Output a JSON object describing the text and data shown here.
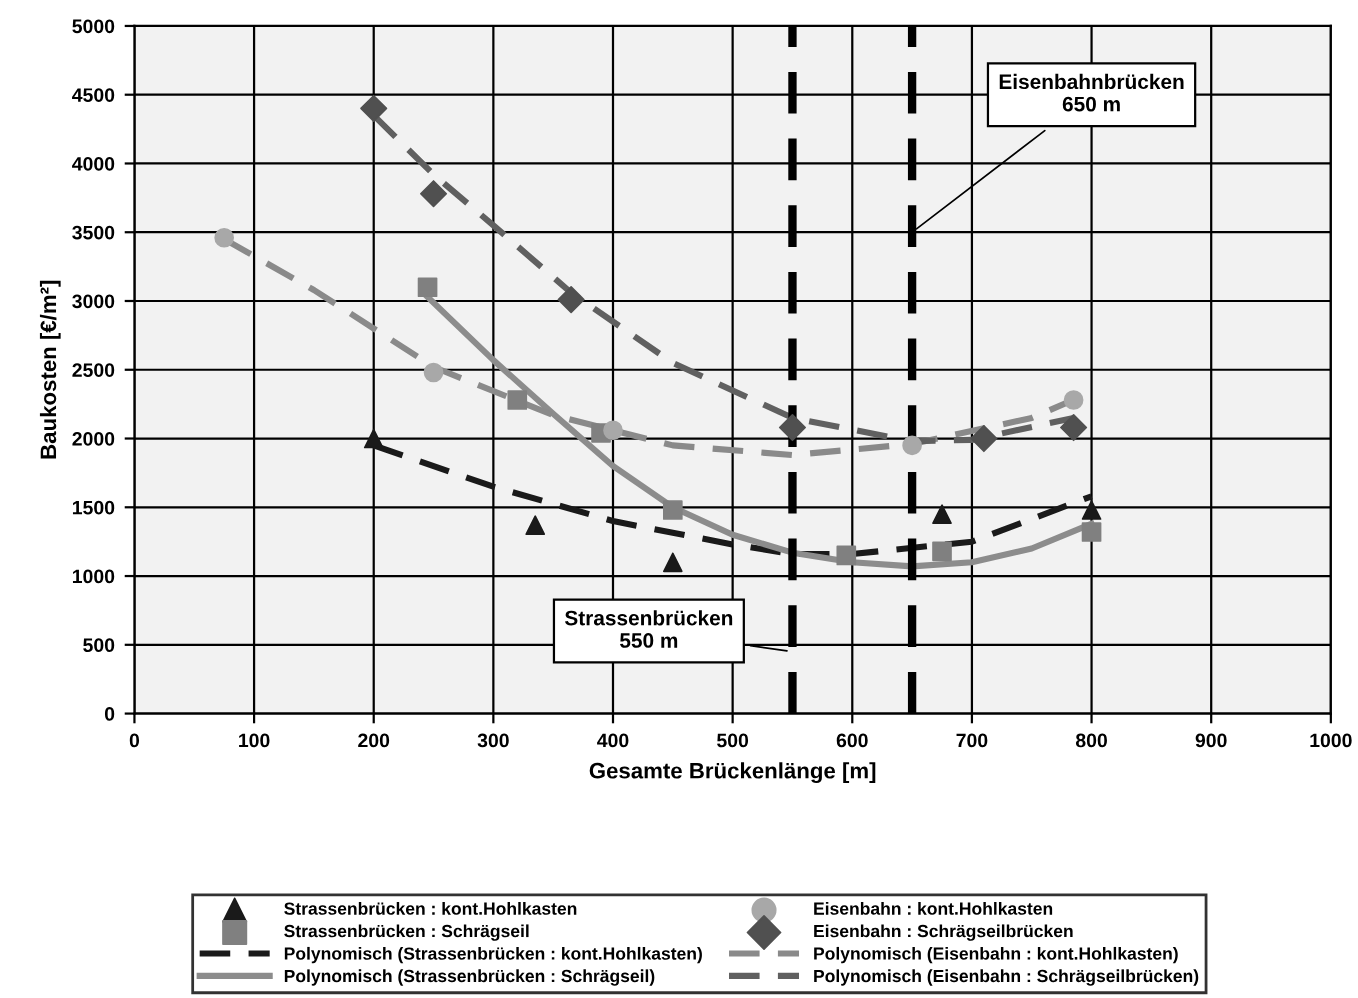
{
  "chart_data": {
    "type": "scatter",
    "xlabel": "Gesamte Brückenlänge [m]",
    "ylabel": "Baukosten [€/m²]",
    "xlim": [
      0,
      1000
    ],
    "ylim": [
      0,
      5000
    ],
    "xticks": [
      0,
      100,
      200,
      300,
      400,
      500,
      600,
      700,
      800,
      900,
      1000
    ],
    "yticks": [
      0,
      500,
      1000,
      1500,
      2000,
      2500,
      3000,
      3500,
      4000,
      4500,
      5000
    ],
    "grid": true,
    "legend": "bottom",
    "series": [
      {
        "name": "Strassenbrücken : kont.Hohlkasten",
        "marker": "triangle",
        "color": "#1a1a1a",
        "x": [
          200,
          335,
          450,
          675,
          800
        ],
        "values": [
          2000,
          1370,
          1100,
          1450,
          1480
        ]
      },
      {
        "name": "Strassenbrücken : Schrägseil",
        "marker": "square",
        "color": "#808080",
        "x": [
          245,
          320,
          390,
          450,
          595,
          675,
          800
        ],
        "values": [
          3100,
          2280,
          2040,
          1480,
          1150,
          1180,
          1320
        ]
      },
      {
        "name": "Polynomisch (Strassenbrücken : kont.Hohlkasten)",
        "type": "line",
        "line_style": "dashed",
        "color": "#1a1a1a",
        "x": [
          200,
          300,
          400,
          500,
          550,
          600,
          700,
          800
        ],
        "values": [
          1950,
          1650,
          1400,
          1230,
          1160,
          1160,
          1250,
          1580
        ]
      },
      {
        "name": "Polynomisch (Strassenbrücken : Schrägseil)",
        "type": "line",
        "line_style": "solid",
        "color": "#8c8c8c",
        "x": [
          245,
          300,
          350,
          400,
          450,
          500,
          550,
          600,
          650,
          700,
          750,
          800
        ],
        "values": [
          3030,
          2570,
          2180,
          1800,
          1500,
          1300,
          1170,
          1100,
          1070,
          1100,
          1200,
          1380
        ]
      },
      {
        "name": "Eisenbahn : kont.Hohlkasten",
        "marker": "circle",
        "color": "#a8a8a8",
        "x": [
          75,
          250,
          400,
          650,
          785
        ],
        "values": [
          3460,
          2480,
          2060,
          1950,
          2280
        ]
      },
      {
        "name": "Eisenbahn : Schrägseilbrücken",
        "marker": "diamond",
        "color": "#505050",
        "x": [
          200,
          250,
          365,
          550,
          710,
          785
        ],
        "values": [
          4400,
          3780,
          3010,
          2080,
          2000,
          2080
        ]
      },
      {
        "name": "Polynomisch (Eisenbahn : kont.Hohlkasten)",
        "type": "line",
        "line_style": "dashed",
        "color": "#8a8a8a",
        "x": [
          75,
          150,
          250,
          350,
          450,
          550,
          650,
          750,
          790
        ],
        "values": [
          3450,
          3080,
          2520,
          2170,
          1950,
          1880,
          1960,
          2150,
          2300
        ]
      },
      {
        "name": "Polynomisch (Eisenbahn : Schrägseilbrücken)",
        "type": "line",
        "line_style": "dashed",
        "color": "#606060",
        "x": [
          200,
          250,
          300,
          365,
          450,
          550,
          650,
          700,
          785
        ],
        "values": [
          4350,
          3920,
          3550,
          3060,
          2550,
          2150,
          1980,
          1990,
          2150
        ]
      }
    ],
    "ref_lines": [
      {
        "axis": "x",
        "value": 550,
        "label": "Strassenbrücken\n550 m",
        "color": "#000000",
        "line_style": "dashed"
      },
      {
        "axis": "x",
        "value": 650,
        "label": "Eisenbahnbrücken\n650 m",
        "color": "#000000",
        "line_style": "dashed"
      }
    ]
  }
}
